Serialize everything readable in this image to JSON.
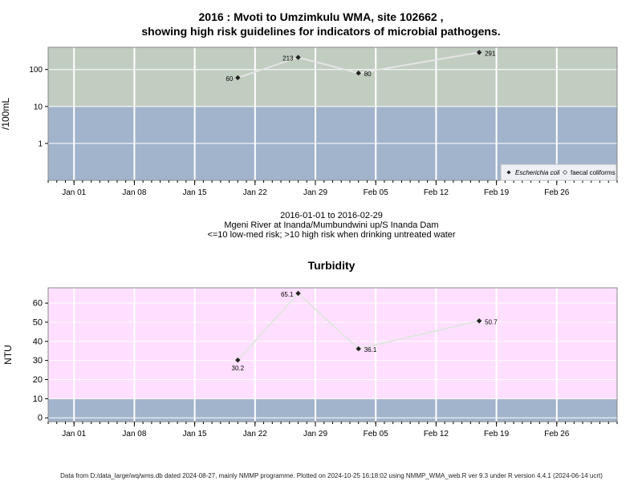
{
  "title_line1": "2016 : Mvoti to Umzimkulu WMA, site 102662 ,",
  "title_line2": "showing high risk guidelines for indicators of microbial pathogens.",
  "caption_line1": "2016-01-01 to 2016-02-29",
  "caption_line2": "Mgeni River at Inanda/Mumbundwini up/S Inanda Dam",
  "caption_line3": "<=10 low-med risk; >10 high risk when drinking untreated water",
  "footer": "Data from D:/data_large/wq/wms.db dated 2024-08-27, mainly NMMP programme. Plotted on 2024-10-25 16:18:02 using NMMP_WMA_web.R ver 9.3 under R version 4.4.1 (2024-06-14 ucrt)",
  "colors": {
    "high_risk": "#c2cdc2",
    "low_risk": "#a2b4cc",
    "turbidity_high": "#ffdfff",
    "line": "#e4e4e4",
    "marker": "#222222"
  },
  "chart_data": [
    {
      "type": "line",
      "ylabel": "/100mL",
      "yscale": "log",
      "ylim": [
        0.1,
        400
      ],
      "yticks": [
        1,
        10,
        100
      ],
      "ytick_labels": [
        "1",
        "10",
        "100"
      ],
      "xlim": [
        "2015-12-29",
        "2016-03-04"
      ],
      "xticks": [
        "2016-01-01",
        "2016-01-08",
        "2016-01-15",
        "2016-01-22",
        "2016-01-29",
        "2016-02-05",
        "2016-02-12",
        "2016-02-19",
        "2016-02-26"
      ],
      "xtick_labels": [
        "Jan 01",
        "Jan 08",
        "Jan 15",
        "Jan 22",
        "Jan 29",
        "Feb 05",
        "Feb 12",
        "Feb 19",
        "Feb 26"
      ],
      "threshold": 10,
      "grid": true,
      "legend_position": "bottom-right",
      "series": [
        {
          "name": "Escherichia coli",
          "marker": "filled-diamond",
          "x": [
            "2016-01-20",
            "2016-01-27",
            "2016-02-03",
            "2016-02-17"
          ],
          "values": [
            60,
            213,
            80,
            291
          ],
          "labels": [
            "60",
            "213",
            "80",
            "291"
          ]
        },
        {
          "name": "faecal coliforms",
          "marker": "open-diamond",
          "x": [],
          "values": [],
          "labels": []
        }
      ]
    },
    {
      "type": "line",
      "title": "Turbidity",
      "ylabel": "NTU",
      "ylim": [
        -2,
        68
      ],
      "yticks": [
        0,
        10,
        20,
        30,
        40,
        50,
        60
      ],
      "ytick_labels": [
        "0",
        "10",
        "20",
        "30",
        "40",
        "50",
        "60"
      ],
      "xlim": [
        "2015-12-29",
        "2016-03-04"
      ],
      "xticks": [
        "2016-01-01",
        "2016-01-08",
        "2016-01-15",
        "2016-01-22",
        "2016-01-29",
        "2016-02-05",
        "2016-02-12",
        "2016-02-19",
        "2016-02-26"
      ],
      "xtick_labels": [
        "Jan 01",
        "Jan 08",
        "Jan 15",
        "Jan 22",
        "Jan 29",
        "Feb 05",
        "Feb 12",
        "Feb 19",
        "Feb 26"
      ],
      "threshold": 10,
      "grid": true,
      "series": [
        {
          "x": [
            "2016-01-20",
            "2016-01-27",
            "2016-02-03",
            "2016-02-17"
          ],
          "values": [
            30.2,
            65.1,
            36.1,
            50.7
          ],
          "labels": [
            "30.2",
            "65.1",
            "36.1",
            "50.7"
          ]
        }
      ]
    }
  ]
}
